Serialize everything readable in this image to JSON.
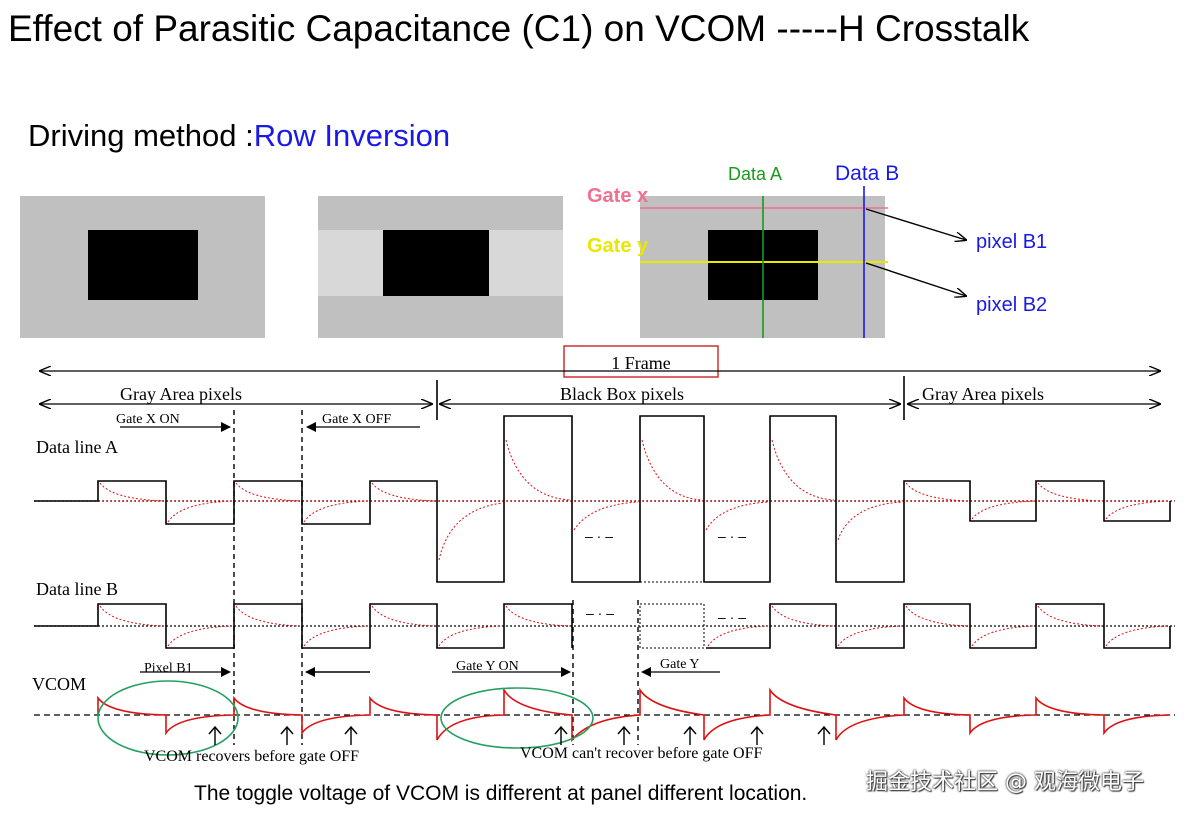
{
  "title": "Effect of Parasitic Capacitance (C1) on VCOM -----H Crosstalk",
  "driving_method": {
    "label": "Driving method :",
    "value": "Row Inversion",
    "value_color": "#1a1ae6"
  },
  "panel_labels": {
    "gate_x": "Gate x",
    "gate_y": "Gate y",
    "data_a": "Data A",
    "data_b": "Data B",
    "pixel_b1": "pixel B1",
    "pixel_b2": "pixel B2"
  },
  "timing": {
    "frame": "1 Frame",
    "gray_area_left": "Gray Area pixels",
    "black_box": "Black Box pixels",
    "gray_area_right": "Gray Area pixels",
    "gate_x_on": "Gate X ON",
    "gate_x_off": "Gate X OFF",
    "data_line_a": "Data line A",
    "data_line_b": "Data line B",
    "vcom": "VCOM",
    "pixel_b1": "Pixel B1",
    "gate_y_on": "Gate Y ON",
    "gate_y": "Gate Y",
    "vcom_recovers": "VCOM recovers before gate OFF",
    "vcom_cant_recover": "VCOM can't recover before gate OFF"
  },
  "caption": "The toggle voltage of  VCOM is different at panel different location.",
  "watermark": "掘金技术社区 @ 观海微电子",
  "colors": {
    "gate_x": "#f07090",
    "gate_y": "#e8e800",
    "data_a": "#1a9a1a",
    "data_b": "#1a1ae6",
    "panel_gray": "#c0c0c0",
    "panel_light": "#d8d8d8",
    "frame_box": "#cc2222",
    "ellipse": "#22a060",
    "vcom_wave": "#dd1111"
  }
}
